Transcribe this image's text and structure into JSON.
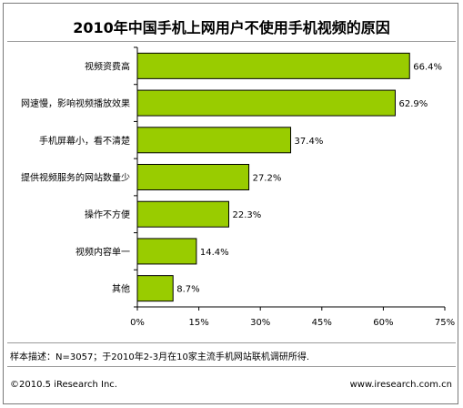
{
  "chart_data": {
    "type": "bar",
    "orientation": "horizontal",
    "title": "2010年中国手机上网用户不使用手机视频的原因",
    "categories": [
      "视频资费高",
      "网速慢，影响视频播放效果",
      "手机屏幕小，看不清楚",
      "提供视频服务的网站数量少",
      "操作不方便",
      "视频内容单一",
      "其他"
    ],
    "values": [
      66.4,
      62.9,
      37.4,
      27.2,
      22.3,
      14.4,
      8.7
    ],
    "value_labels": [
      "66.4%",
      "62.9%",
      "37.4%",
      "27.2%",
      "22.3%",
      "14.4%",
      "8.7%"
    ],
    "xlim": [
      0,
      75
    ],
    "x_ticks": [
      0,
      15,
      30,
      45,
      60,
      75
    ],
    "x_tick_labels": [
      "0%",
      "15%",
      "30%",
      "45%",
      "60%",
      "75%"
    ],
    "grid": false,
    "bar_color": "#99cc00",
    "bar_edge_color": "#000000"
  },
  "note": "样本描述：N=3057；于2010年2-3月在10家主流手机网站联机调研所得.",
  "copyright": "©2010.5 iResearch Inc.",
  "website": "www.iresearch.com.cn"
}
